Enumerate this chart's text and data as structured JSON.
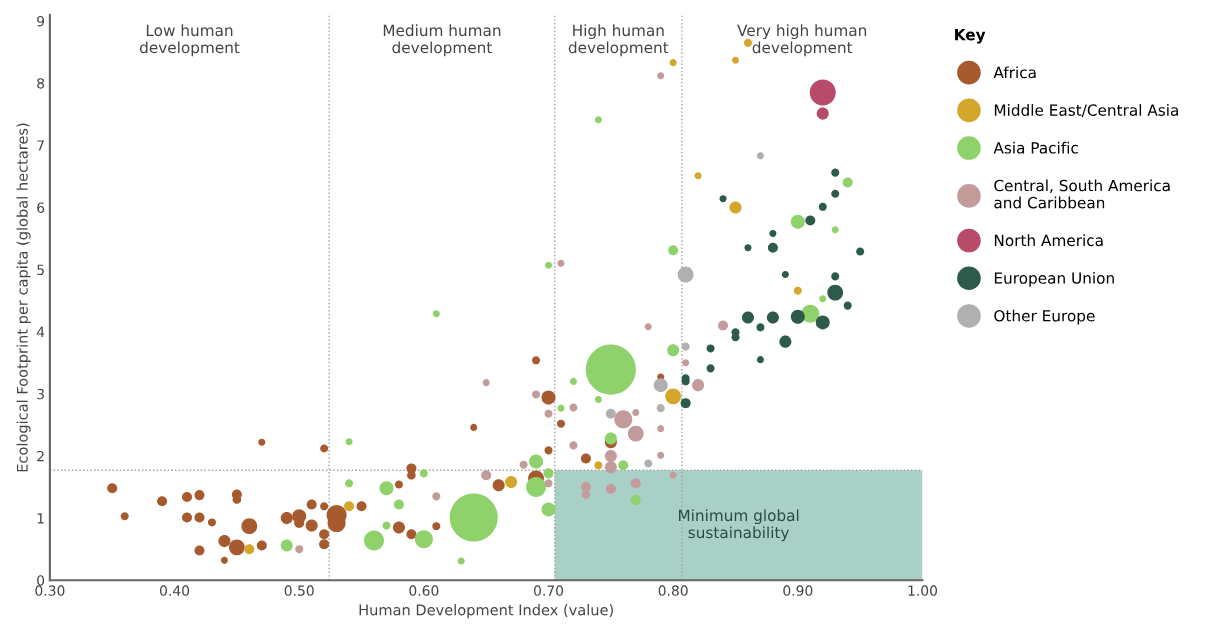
{
  "chart_data": {
    "type": "bubble",
    "xlabel": "Human Development Index (value)",
    "ylabel": "Ecological Footprint per capita (global hectares)",
    "legend_title": "Key",
    "legend": "right",
    "grid": false,
    "xlim": [
      0.3,
      1.0
    ],
    "ylim": [
      0,
      9.1
    ],
    "xticks": [
      {
        "value": 0.3,
        "label": "0.30"
      },
      {
        "value": 0.4,
        "label": "0.40"
      },
      {
        "value": 0.5,
        "label": "0.50"
      },
      {
        "value": 0.6,
        "label": "0.60"
      },
      {
        "value": 0.7,
        "label": "0.70"
      },
      {
        "value": 0.8,
        "label": "0.80"
      },
      {
        "value": 0.9,
        "label": "0.90"
      },
      {
        "value": 1.0,
        "label": "1.00"
      }
    ],
    "yticks": [
      0,
      1,
      2,
      3,
      4,
      5,
      6,
      7,
      8,
      9
    ],
    "ref_lines": [
      {
        "axis": "x",
        "value": 0.524,
        "color": "#a0a0a0",
        "line_style": "dotted"
      },
      {
        "axis": "x",
        "value": 0.705,
        "color": "#a0a0a0",
        "line_style": "dotted"
      },
      {
        "axis": "x",
        "value": 0.807,
        "color": "#a0a0a0",
        "line_style": "dotted"
      },
      {
        "axis": "y",
        "value": 1.77,
        "color": "#a0a0a0",
        "line_style": "dotted"
      }
    ],
    "bands": [
      {
        "axis": "x",
        "from": 0.705,
        "to": 1.0,
        "label": "Minimum global\nsustainability",
        "color": "#a9d0c6"
      }
    ],
    "annotations": [
      "Low human\ndevelopment",
      "Medium human\ndevelopment",
      "High human\ndevelopment",
      "Very high human\ndevelopment"
    ],
    "series": [
      {
        "name": "Africa",
        "color": "#a65a2e",
        "x": [
          0.35,
          0.36,
          0.39,
          0.41,
          0.42,
          0.41,
          0.42,
          0.43,
          0.45,
          0.45,
          0.47,
          0.46,
          0.44,
          0.45,
          0.42,
          0.44,
          0.47,
          0.49,
          0.5,
          0.5,
          0.51,
          0.51,
          0.52,
          0.52,
          0.52,
          0.52,
          0.53,
          0.53,
          0.55,
          0.58,
          0.58,
          0.59,
          0.59,
          0.59,
          0.61,
          0.64,
          0.66,
          0.69,
          0.7,
          0.7,
          0.71,
          0.69,
          0.73,
          0.75,
          0.79
        ],
        "values": [
          1.48,
          1.03,
          1.27,
          1.34,
          1.37,
          1.01,
          1.01,
          0.93,
          1.38,
          1.3,
          2.22,
          0.87,
          0.63,
          0.53,
          0.48,
          0.32,
          0.56,
          1.0,
          1.03,
          0.92,
          0.88,
          1.22,
          1.19,
          0.74,
          0.58,
          2.12,
          0.92,
          1.05,
          1.19,
          1.54,
          0.85,
          0.74,
          1.8,
          1.69,
          0.87,
          2.46,
          1.53,
          3.54,
          2.94,
          2.09,
          2.52,
          1.64,
          1.96,
          2.22,
          3.27
        ],
        "sizes": [
          0.04,
          0.026,
          0.04,
          0.04,
          0.04,
          0.04,
          0.04,
          0.026,
          0.04,
          0.03,
          0.02,
          0.1,
          0.058,
          0.1,
          0.04,
          0.02,
          0.04,
          0.058,
          0.078,
          0.04,
          0.058,
          0.04,
          0.026,
          0.04,
          0.04,
          0.026,
          0.13,
          0.16,
          0.04,
          0.026,
          0.058,
          0.04,
          0.04,
          0.03,
          0.026,
          0.02,
          0.058,
          0.026,
          0.078,
          0.026,
          0.026,
          0.1,
          0.04,
          0.058,
          0.02
        ]
      },
      {
        "name": "Middle East/Central Asia",
        "color": "#d4a72c",
        "x": [
          0.46,
          0.54,
          0.67,
          0.74,
          0.8,
          0.8,
          0.82,
          0.86,
          0.85,
          0.85,
          0.9
        ],
        "values": [
          0.5,
          1.19,
          1.58,
          1.85,
          2.96,
          8.33,
          6.51,
          8.65,
          8.37,
          6.0,
          4.66
        ],
        "sizes": [
          0.04,
          0.04,
          0.058,
          0.026,
          0.1,
          0.02,
          0.02,
          0.026,
          0.02,
          0.058,
          0.026
        ]
      },
      {
        "name": "Asia Pacific",
        "color": "#8fd16a",
        "x": [
          0.49,
          0.61,
          0.54,
          0.54,
          0.57,
          0.6,
          0.57,
          0.56,
          0.6,
          0.64,
          0.63,
          0.69,
          0.69,
          0.7,
          0.7,
          0.71,
          0.72,
          0.7,
          0.74,
          0.75,
          0.74,
          0.75,
          0.76,
          0.77,
          0.8,
          0.8,
          0.94,
          0.9,
          0.93,
          0.91,
          0.92,
          0.58
        ],
        "values": [
          0.56,
          4.29,
          2.23,
          1.56,
          1.48,
          1.72,
          0.88,
          0.64,
          0.66,
          1.01,
          0.31,
          1.91,
          1.5,
          1.72,
          1.14,
          2.77,
          3.2,
          5.07,
          7.41,
          3.39,
          2.91,
          2.28,
          1.85,
          1.29,
          3.7,
          5.31,
          6.4,
          5.77,
          5.64,
          4.29,
          4.53,
          1.22
        ],
        "sizes": [
          0.058,
          0.02,
          0.02,
          0.026,
          0.078,
          0.026,
          0.026,
          0.16,
          0.13,
          0.92,
          0.02,
          0.078,
          0.16,
          0.04,
          0.078,
          0.02,
          0.02,
          0.02,
          0.02,
          1.0,
          0.02,
          0.058,
          0.04,
          0.04,
          0.058,
          0.04,
          0.04,
          0.078,
          0.02,
          0.13,
          0.02,
          0.04
        ]
      },
      {
        "name": "Central, South America\nand Caribbean",
        "color": "#c49b9b",
        "x": [
          0.5,
          0.65,
          0.61,
          0.65,
          0.68,
          0.69,
          0.7,
          0.72,
          0.72,
          0.7,
          0.71,
          0.73,
          0.73,
          0.76,
          0.77,
          0.75,
          0.75,
          0.75,
          0.77,
          0.77,
          0.78,
          0.79,
          0.79,
          0.8,
          0.79,
          0.82,
          0.81,
          0.84
        ],
        "values": [
          0.5,
          3.18,
          1.35,
          1.69,
          1.86,
          2.99,
          2.68,
          2.78,
          2.17,
          1.56,
          5.1,
          1.5,
          1.38,
          2.59,
          2.36,
          2.0,
          1.82,
          1.47,
          1.56,
          2.7,
          4.08,
          2.44,
          2.01,
          1.69,
          8.12,
          3.14,
          3.5,
          4.1
        ],
        "sizes": [
          0.026,
          0.02,
          0.026,
          0.04,
          0.026,
          0.026,
          0.026,
          0.026,
          0.026,
          0.026,
          0.02,
          0.04,
          0.03,
          0.13,
          0.1,
          0.058,
          0.058,
          0.04,
          0.04,
          0.02,
          0.02,
          0.02,
          0.02,
          0.02,
          0.02,
          0.058,
          0.02,
          0.04
        ]
      },
      {
        "name": "North America",
        "color": "#b84a6a",
        "x": [
          0.92,
          0.92
        ],
        "values": [
          7.85,
          7.51
        ],
        "sizes": [
          0.27,
          0.058
        ]
      },
      {
        "name": "European Union",
        "color": "#2e5a4c",
        "x": [
          0.81,
          0.81,
          0.93,
          0.93,
          0.92,
          0.91,
          0.84,
          0.88,
          0.88,
          0.86,
          0.95,
          0.89,
          0.93,
          0.93,
          0.94,
          0.86,
          0.88,
          0.9,
          0.92,
          0.87,
          0.85,
          0.85,
          0.89,
          0.83,
          0.87,
          0.83,
          0.81
        ],
        "values": [
          3.2,
          2.85,
          6.56,
          6.22,
          6.01,
          5.79,
          6.14,
          5.58,
          5.35,
          5.35,
          5.29,
          4.92,
          4.89,
          4.63,
          4.42,
          4.23,
          4.23,
          4.24,
          4.15,
          4.07,
          3.99,
          3.91,
          3.84,
          3.73,
          3.55,
          3.41,
          3.25
        ],
        "sizes": [
          0.026,
          0.04,
          0.026,
          0.026,
          0.026,
          0.04,
          0.02,
          0.02,
          0.04,
          0.02,
          0.026,
          0.02,
          0.026,
          0.1,
          0.026,
          0.058,
          0.058,
          0.078,
          0.078,
          0.026,
          0.026,
          0.026,
          0.058,
          0.026,
          0.02,
          0.026,
          0.026
        ]
      },
      {
        "name": "Other Europe",
        "color": "#b0b0b0",
        "x": [
          0.81,
          0.79,
          0.75,
          0.79,
          0.81,
          0.78,
          0.87
        ],
        "values": [
          4.92,
          3.14,
          2.68,
          2.77,
          3.76,
          1.88,
          6.83
        ],
        "sizes": [
          0.1,
          0.078,
          0.04,
          0.026,
          0.026,
          0.026,
          0.02
        ]
      }
    ]
  }
}
